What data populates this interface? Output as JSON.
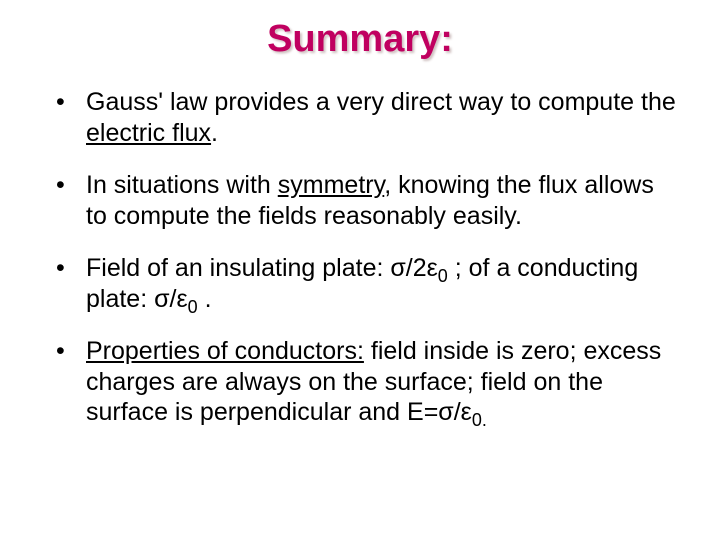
{
  "title": {
    "text": "Summary:",
    "color": "#c00060",
    "fontsize": 38
  },
  "bullets": [
    {
      "html": "Gauss' law provides a very direct way to compute the <span class=\"underline\">electric flux</span>."
    },
    {
      "html": "In situations with <span class=\"underline\">symmetry</span>, knowing the flux allows to compute the fields reasonably easily."
    },
    {
      "html": "Field of an insulating plate: σ/2ε<span class=\"sub\">0</span> ; of a conducting plate: σ/ε<span class=\"sub\">0</span> ."
    },
    {
      "html": "<span class=\"underline\">Properties of conductors:</span> field inside is zero; excess charges are always on the surface; field on the surface is perpendicular and E=σ/ε<span class=\"sub\">0.</span>"
    }
  ],
  "colors": {
    "background": "#ffffff",
    "text": "#000000",
    "title": "#c00060"
  },
  "typography": {
    "title_fontsize": 38,
    "body_fontsize": 25,
    "font_family": "Arial"
  }
}
